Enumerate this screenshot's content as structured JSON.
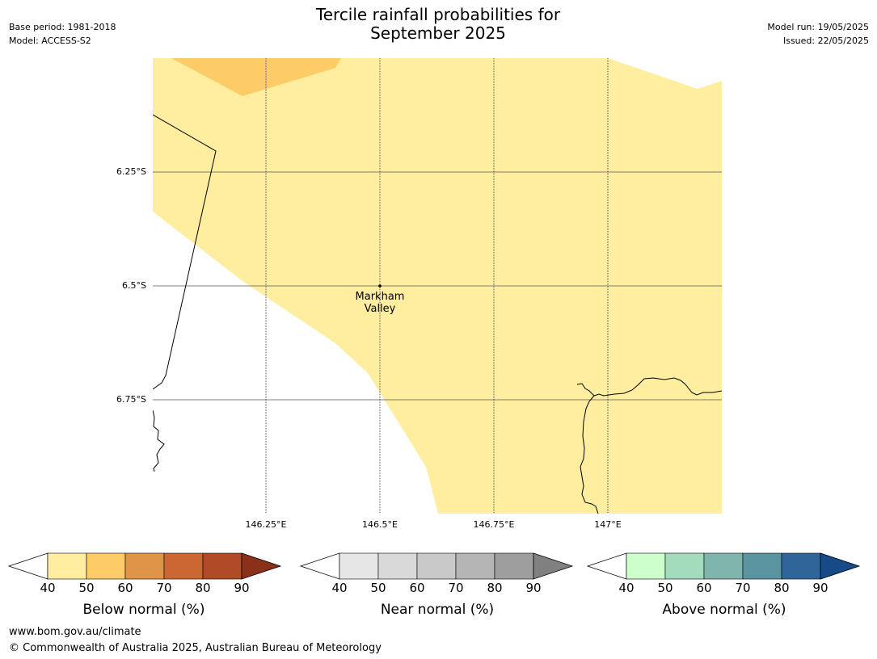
{
  "header": {
    "title_line1": "Tercile rainfall probabilities for",
    "title_line2": "September 2025",
    "base_period": "Base period: 1981-2018",
    "model": "Model: ACCESS-S2",
    "model_run": "Model run: 19/05/2025",
    "issued": "Issued: 22/05/2025"
  },
  "map": {
    "lat_labels": [
      "6.25°S",
      "6.5°S",
      "6.75°S"
    ],
    "lon_labels": [
      "146.25°E",
      "146.5°E",
      "146.75°E",
      "147°E"
    ],
    "place": {
      "line1": "Markham",
      "line2": "Valley"
    },
    "fill_colors": {
      "below_40_50": "#ffeda0",
      "below_50_60": "#fecc66",
      "coastline": "#000000",
      "gridline": "#555555"
    }
  },
  "colorbars": [
    {
      "title": "Below normal (%)",
      "ticks": [
        "40",
        "50",
        "60",
        "70",
        "80",
        "90"
      ],
      "colors": [
        "#ffeda0",
        "#fecc66",
        "#e09448",
        "#cc6633",
        "#b04a27",
        "#8b3019"
      ]
    },
    {
      "title": "Near normal (%)",
      "ticks": [
        "40",
        "50",
        "60",
        "70",
        "80",
        "90"
      ],
      "colors": [
        "#e6e6e6",
        "#d9d9d9",
        "#c9c9c9",
        "#b5b5b5",
        "#9e9e9e",
        "#808080"
      ]
    },
    {
      "title": "Above normal (%)",
      "ticks": [
        "40",
        "50",
        "60",
        "70",
        "80",
        "90"
      ],
      "colors": [
        "#ccffcc",
        "#a3dcbc",
        "#80b5ae",
        "#5a94a0",
        "#2f6599",
        "#164b87"
      ]
    }
  ],
  "footer": {
    "url": "www.bom.gov.au/climate",
    "copyright": "© Commonwealth of Australia 2025, Australian Bureau of Meteorology"
  }
}
